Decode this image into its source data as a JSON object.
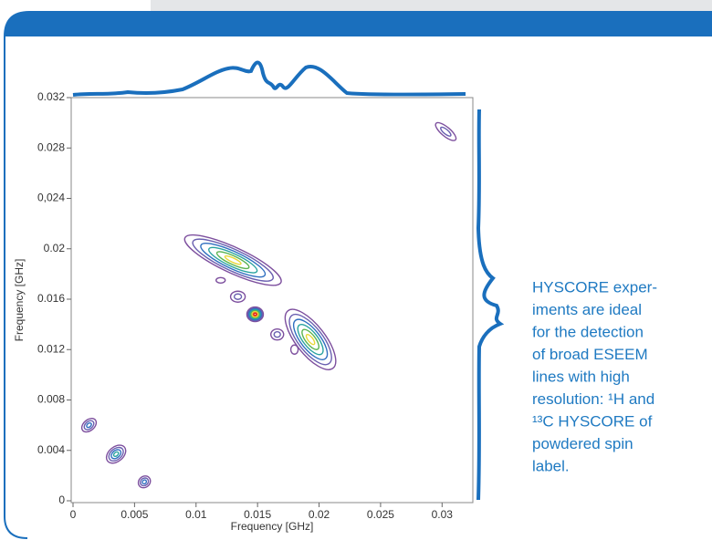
{
  "chart_data": {
    "type": "contour",
    "x_label": "Frequency [GHz]",
    "y_label": "Frequency [GHz]",
    "xlim": [
      0,
      0.0325
    ],
    "ylim": [
      0,
      0.032
    ],
    "xticks": [
      0,
      0.005,
      0.01,
      0.015,
      0.02,
      0.025,
      0.03
    ],
    "yticks": [
      0,
      0.004,
      0.008,
      0.012,
      0.016,
      0.02,
      {
        "value": 0.024,
        "label": "0,024"
      },
      0.028,
      0.032
    ],
    "peaks": {
      "x": [
        0.0013,
        0.0035,
        0.0058,
        0.013,
        0.012,
        0.0134,
        0.0148,
        0.0166,
        0.018,
        0.0193,
        0.0303
      ],
      "y": [
        0.006,
        0.0037,
        0.0015,
        0.0191,
        0.0175,
        0.0162,
        0.0148,
        0.0132,
        0.012,
        0.0128,
        0.0293
      ]
    },
    "annotation_lines": [
      "HYSCORE exper-",
      "iments are ideal",
      "for the detection",
      "of broad ESEEM",
      "lines with high",
      "resolution: ¹H and",
      "¹³C HYSCORE of",
      "powdered spin",
      "label."
    ]
  }
}
